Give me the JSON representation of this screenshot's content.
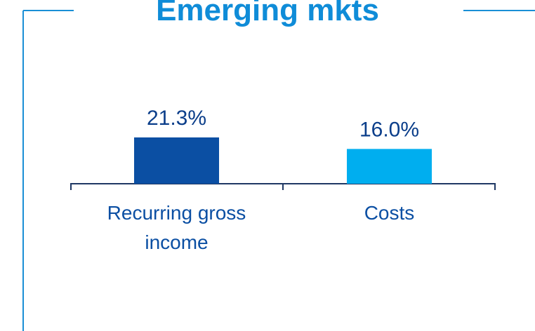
{
  "chart_data": {
    "type": "bar",
    "title": "Emerging mkts",
    "categories": [
      "Recurring gross income",
      "Costs"
    ],
    "values": [
      21.3,
      16.0
    ],
    "value_labels": [
      "21.3%",
      "16.0%"
    ],
    "colors": [
      "#0b4fa3",
      "#00aeef"
    ]
  }
}
